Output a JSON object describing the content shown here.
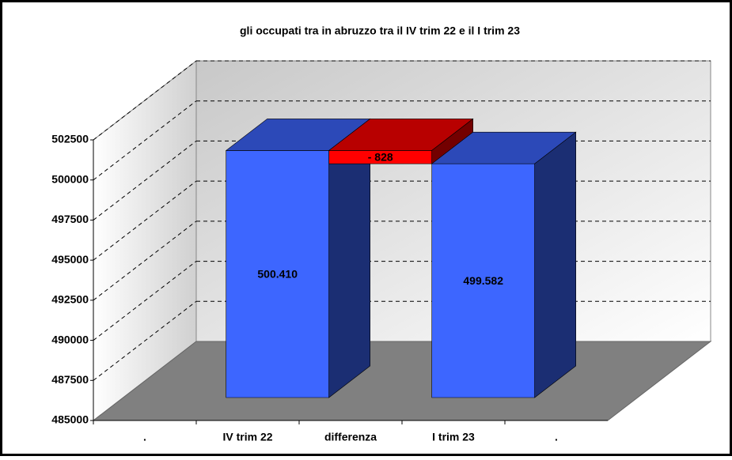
{
  "chart_data": {
    "type": "waterfall",
    "title": "gli occupati tra in abruzzo tra il IV trim 22 e il I trim 23",
    "categories": [
      ".",
      "IV trim 22",
      "differenza",
      "I trim 23",
      "."
    ],
    "values": [
      null,
      500410,
      -828,
      499582,
      null
    ],
    "value_labels": [
      null,
      "500.410",
      "- 828",
      "499.582",
      null
    ],
    "color": "#3d66ff",
    "negative_color": "#ff0000",
    "ylim": [
      485000,
      502500
    ],
    "yticks": [
      485000,
      487500,
      490000,
      492500,
      495000,
      497500,
      500000,
      502500
    ],
    "grid": true
  }
}
